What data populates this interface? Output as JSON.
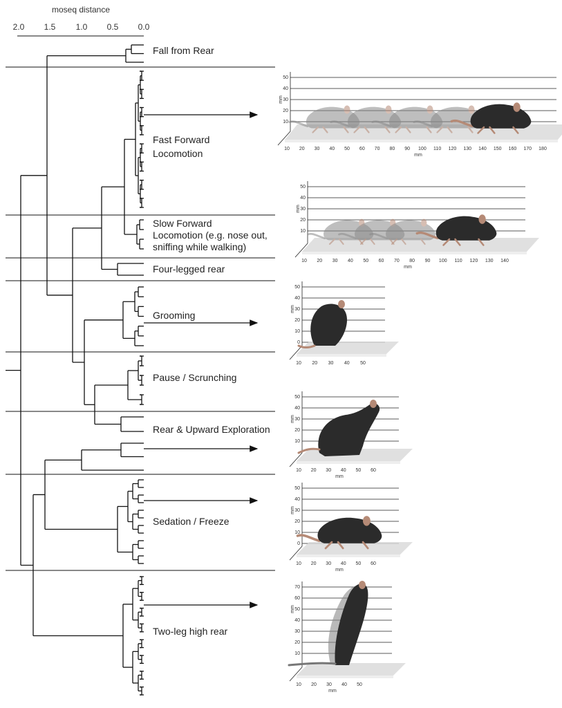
{
  "axis": {
    "title": "moseq distance",
    "ticks": [
      "2.0",
      "1.5",
      "1.0",
      "0.5",
      "0.0"
    ]
  },
  "clusters": [
    {
      "label": "Fall from Rear"
    },
    {
      "label": "Fast Forward",
      "label2": "Locomotion"
    },
    {
      "label": "Slow Forward",
      "label2": "Locomotion (e.g. nose out,",
      "label3": "sniffing while walking)"
    },
    {
      "label": "Four-legged rear"
    },
    {
      "label": "Grooming"
    },
    {
      "label": "Pause / Scrunching"
    },
    {
      "label": "Rear & Upward Exploration"
    },
    {
      "label": "Sedation / Freeze"
    },
    {
      "label": "Two-leg  high rear"
    }
  ],
  "panels": [
    {
      "name": "fast-forward-panel",
      "yticks": [
        "50",
        "40",
        "30",
        "20",
        "10"
      ],
      "xticks": [
        "10",
        "20",
        "30",
        "40",
        "50",
        "60",
        "70",
        "80",
        "90",
        "100",
        "110",
        "120",
        "130",
        "140",
        "150",
        "160",
        "170",
        "180"
      ],
      "xunit": "mm",
      "yunit": "mm"
    },
    {
      "name": "slow-forward-panel",
      "yticks": [
        "50",
        "40",
        "30",
        "20",
        "10"
      ],
      "xticks": [
        "10",
        "20",
        "30",
        "40",
        "50",
        "60",
        "70",
        "80",
        "90",
        "100",
        "110",
        "120",
        "130",
        "140"
      ],
      "xunit": "mm",
      "yunit": "mm"
    },
    {
      "name": "grooming-panel",
      "yticks": [
        "50",
        "40",
        "30",
        "20",
        "10",
        "0"
      ],
      "xticks": [
        "10",
        "20",
        "30",
        "40",
        "50"
      ],
      "xunit": "",
      "yunit": "mm"
    },
    {
      "name": "rear-panel",
      "yticks": [
        "50",
        "40",
        "30",
        "20",
        "10"
      ],
      "xticks": [
        "10",
        "20",
        "30",
        "40",
        "50",
        "60"
      ],
      "xunit": "mm",
      "yunit": "mm"
    },
    {
      "name": "sedation-panel",
      "yticks": [
        "50",
        "40",
        "30",
        "20",
        "10",
        "0"
      ],
      "xticks": [
        "10",
        "20",
        "30",
        "40",
        "50",
        "60"
      ],
      "xunit": "mm",
      "yunit": "mm"
    },
    {
      "name": "two-leg-panel",
      "yticks": [
        "70",
        "60",
        "50",
        "40",
        "30",
        "20",
        "10"
      ],
      "xticks": [
        "10",
        "20",
        "30",
        "40",
        "50"
      ],
      "xunit": "mm",
      "yunit": "mm"
    }
  ],
  "colors": {
    "mouse_body": "#2b2b2b",
    "mouse_ghost": "#8a8a8a",
    "ear_tail": "#b58a76",
    "floor": "#d8d8d8"
  }
}
